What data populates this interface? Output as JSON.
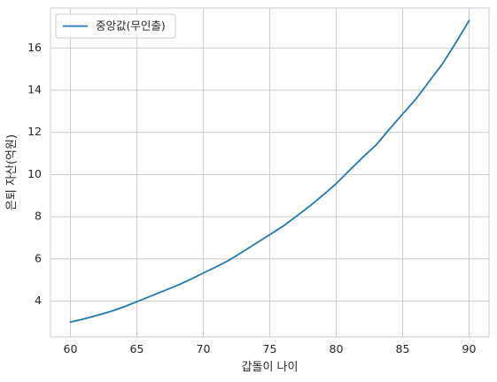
{
  "chart_data": {
    "type": "line",
    "xlabel": "갑돌이 나이",
    "ylabel": "은퇴 자산(억원)",
    "xlim": [
      58.5,
      91.5
    ],
    "ylim": [
      2.3,
      17.9
    ],
    "x_ticks": [
      60,
      65,
      70,
      75,
      80,
      85,
      90
    ],
    "y_ticks": [
      4,
      6,
      8,
      10,
      12,
      14,
      16
    ],
    "grid": true,
    "legend_position": "top-left",
    "series": [
      {
        "name": "중앙값(무인출)",
        "color": "#1f77b4",
        "x": [
          60,
          61,
          62,
          63,
          64,
          65,
          66,
          67,
          68,
          69,
          70,
          71,
          72,
          73,
          74,
          75,
          76,
          77,
          78,
          79,
          80,
          81,
          82,
          83,
          84,
          85,
          86,
          87,
          88,
          89,
          90
        ],
        "values": [
          3.0,
          3.15,
          3.32,
          3.5,
          3.72,
          3.97,
          4.22,
          4.48,
          4.73,
          5.02,
          5.33,
          5.63,
          5.96,
          6.35,
          6.75,
          7.15,
          7.55,
          8.02,
          8.5,
          9.02,
          9.57,
          10.2,
          10.82,
          11.4,
          12.15,
          12.87,
          13.58,
          14.42,
          15.25,
          16.25,
          17.3
        ]
      }
    ]
  }
}
